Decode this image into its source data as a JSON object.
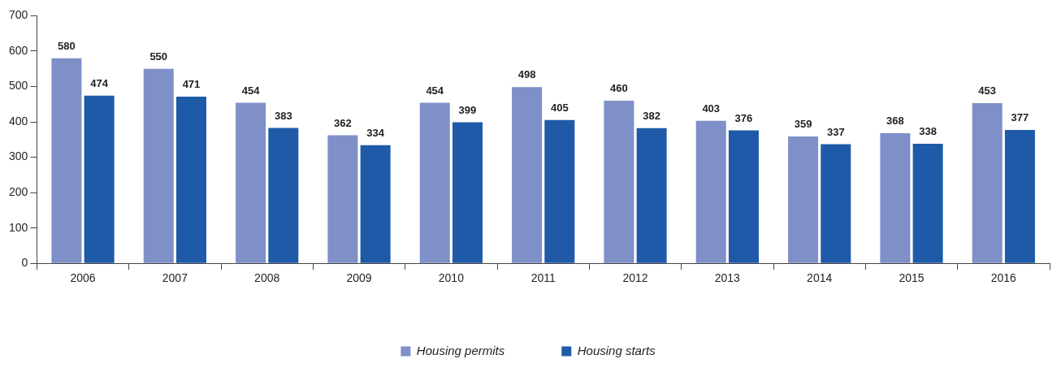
{
  "chart_data": {
    "type": "bar",
    "categories": [
      "2006",
      "2007",
      "2008",
      "2009",
      "2010",
      "2011",
      "2012",
      "2013",
      "2014",
      "2015",
      "2016"
    ],
    "series": [
      {
        "name": "Housing permits",
        "color": "#7f8fc8",
        "values": [
          580,
          550,
          454,
          362,
          454,
          498,
          460,
          403,
          359,
          368,
          453
        ]
      },
      {
        "name": "Housing starts",
        "color": "#1f5aa8",
        "values": [
          474,
          471,
          383,
          334,
          399,
          405,
          382,
          376,
          337,
          338,
          377
        ]
      }
    ],
    "ylim": [
      0,
      700
    ],
    "yticks": [
      0,
      100,
      200,
      300,
      400,
      500,
      600,
      700
    ],
    "grid": false,
    "legend": "bottom",
    "data_labels": true
  }
}
